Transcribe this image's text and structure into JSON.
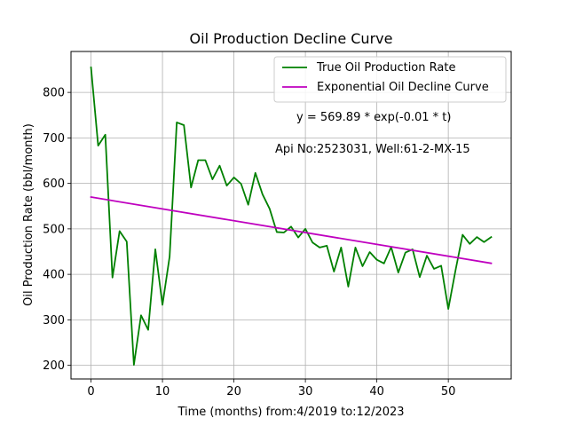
{
  "chart_data": {
    "type": "line",
    "title": "Oil Production Decline Curve",
    "xlabel": "Time (months) from:4/2019 to:12/2023",
    "ylabel": "Oil Production Rate (bbl/month)",
    "xlim": [
      -2.8,
      58.8
    ],
    "ylim": [
      170,
      890
    ],
    "xticks": [
      0,
      10,
      20,
      30,
      40,
      50
    ],
    "yticks": [
      200,
      300,
      400,
      500,
      600,
      700,
      800
    ],
    "grid": true,
    "legend_position": "top-right",
    "annotations": [
      "y = 569.89 * exp(-0.01 * t)",
      "Api No:2523031, Well:61-2-MX-15"
    ],
    "series": [
      {
        "name": "True Oil Production Rate",
        "color": "#008000",
        "x": [
          0,
          1,
          2,
          3,
          4,
          5,
          6,
          7,
          8,
          9,
          10,
          11,
          12,
          13,
          14,
          15,
          16,
          17,
          18,
          19,
          20,
          21,
          22,
          23,
          24,
          25,
          26,
          27,
          28,
          29,
          30,
          31,
          32,
          33,
          34,
          35,
          36,
          37,
          38,
          39,
          40,
          41,
          42,
          43,
          44,
          45,
          46,
          47,
          48,
          49,
          50,
          51,
          52,
          53,
          54,
          55,
          56
        ],
        "y": [
          855,
          683,
          707,
          393,
          495,
          472,
          201,
          310,
          278,
          455,
          333,
          439,
          734,
          728,
          591,
          651,
          651,
          609,
          639,
          595,
          613,
          599,
          553,
          623,
          576,
          544,
          493,
          492,
          505,
          481,
          500,
          470,
          459,
          463,
          406,
          459,
          373,
          459,
          418,
          449,
          432,
          424,
          460,
          404,
          448,
          455,
          394,
          441,
          412,
          419,
          324,
          408,
          487,
          467,
          482,
          471,
          482
        ]
      },
      {
        "name": "Exponential Oil Decline Curve",
        "color": "#bf00bf",
        "x": [
          0,
          56
        ],
        "y": [
          569.89,
          424.3
        ]
      }
    ]
  }
}
